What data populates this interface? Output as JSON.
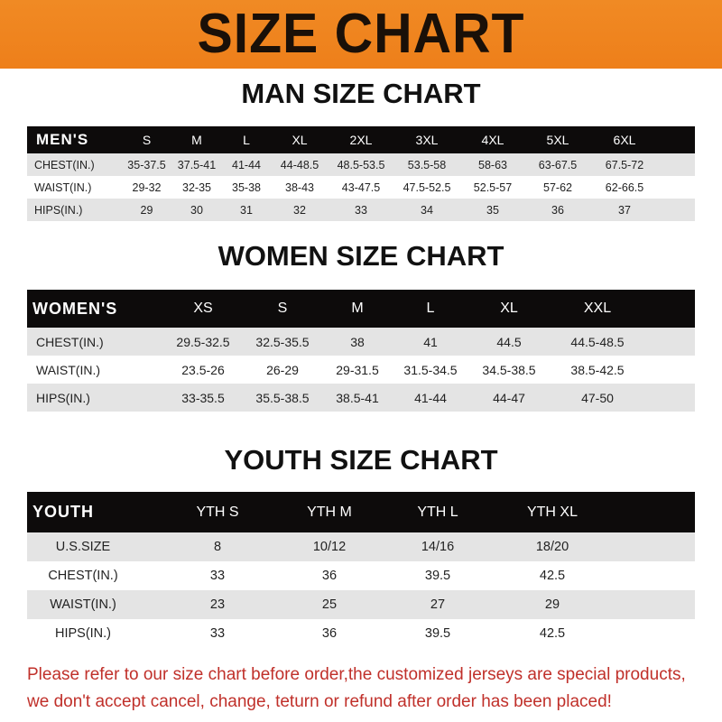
{
  "banner": {
    "title": "SIZE CHART",
    "color": "#ef8420"
  },
  "men": {
    "title": "MAN SIZE CHART",
    "header": [
      "MEN'S",
      "S",
      "M",
      "L",
      "XL",
      "2XL",
      "3XL",
      "4XL",
      "5XL",
      "6XL"
    ],
    "rows": [
      [
        "CHEST(IN.)",
        "35-37.5",
        "37.5-41",
        "41-44",
        "44-48.5",
        "48.5-53.5",
        "53.5-58",
        "58-63",
        "63-67.5",
        "67.5-72"
      ],
      [
        "WAIST(IN.)",
        "29-32",
        "32-35",
        "35-38",
        "38-43",
        "43-47.5",
        "47.5-52.5",
        "52.5-57",
        "57-62",
        "62-66.5"
      ],
      [
        "HIPS(IN.)",
        "29",
        "30",
        "31",
        "32",
        "33",
        "34",
        "35",
        "36",
        "37"
      ]
    ]
  },
  "women": {
    "title": "WOMEN SIZE CHART",
    "header": [
      "WOMEN'S",
      "XS",
      "S",
      "M",
      "L",
      "XL",
      "XXL"
    ],
    "rows": [
      [
        "CHEST(IN.)",
        "29.5-32.5",
        "32.5-35.5",
        "38",
        "41",
        "44.5",
        "44.5-48.5"
      ],
      [
        "WAIST(IN.)",
        "23.5-26",
        "26-29",
        "29-31.5",
        "31.5-34.5",
        "34.5-38.5",
        "38.5-42.5"
      ],
      [
        "HIPS(IN.)",
        "33-35.5",
        "35.5-38.5",
        "38.5-41",
        "41-44",
        "44-47",
        "47-50"
      ]
    ]
  },
  "youth": {
    "title": "YOUTH SIZE CHART",
    "header": [
      "YOUTH",
      "YTH S",
      "YTH M",
      "YTH L",
      "YTH XL"
    ],
    "rows": [
      [
        "U.S.SIZE",
        "8",
        "10/12",
        "14/16",
        "18/20"
      ],
      [
        "CHEST(IN.)",
        "33",
        "36",
        "39.5",
        "42.5"
      ],
      [
        "WAIST(IN.)",
        "23",
        "25",
        "27",
        "29"
      ],
      [
        "HIPS(IN.)",
        "33",
        "36",
        "39.5",
        "42.5"
      ]
    ]
  },
  "note": {
    "line1": "Please refer to our size chart before order,the customized jerseys are special products,",
    "line2": "we don't accept cancel, change, teturn or refund after order has been placed!",
    "color": "#c0302a"
  }
}
